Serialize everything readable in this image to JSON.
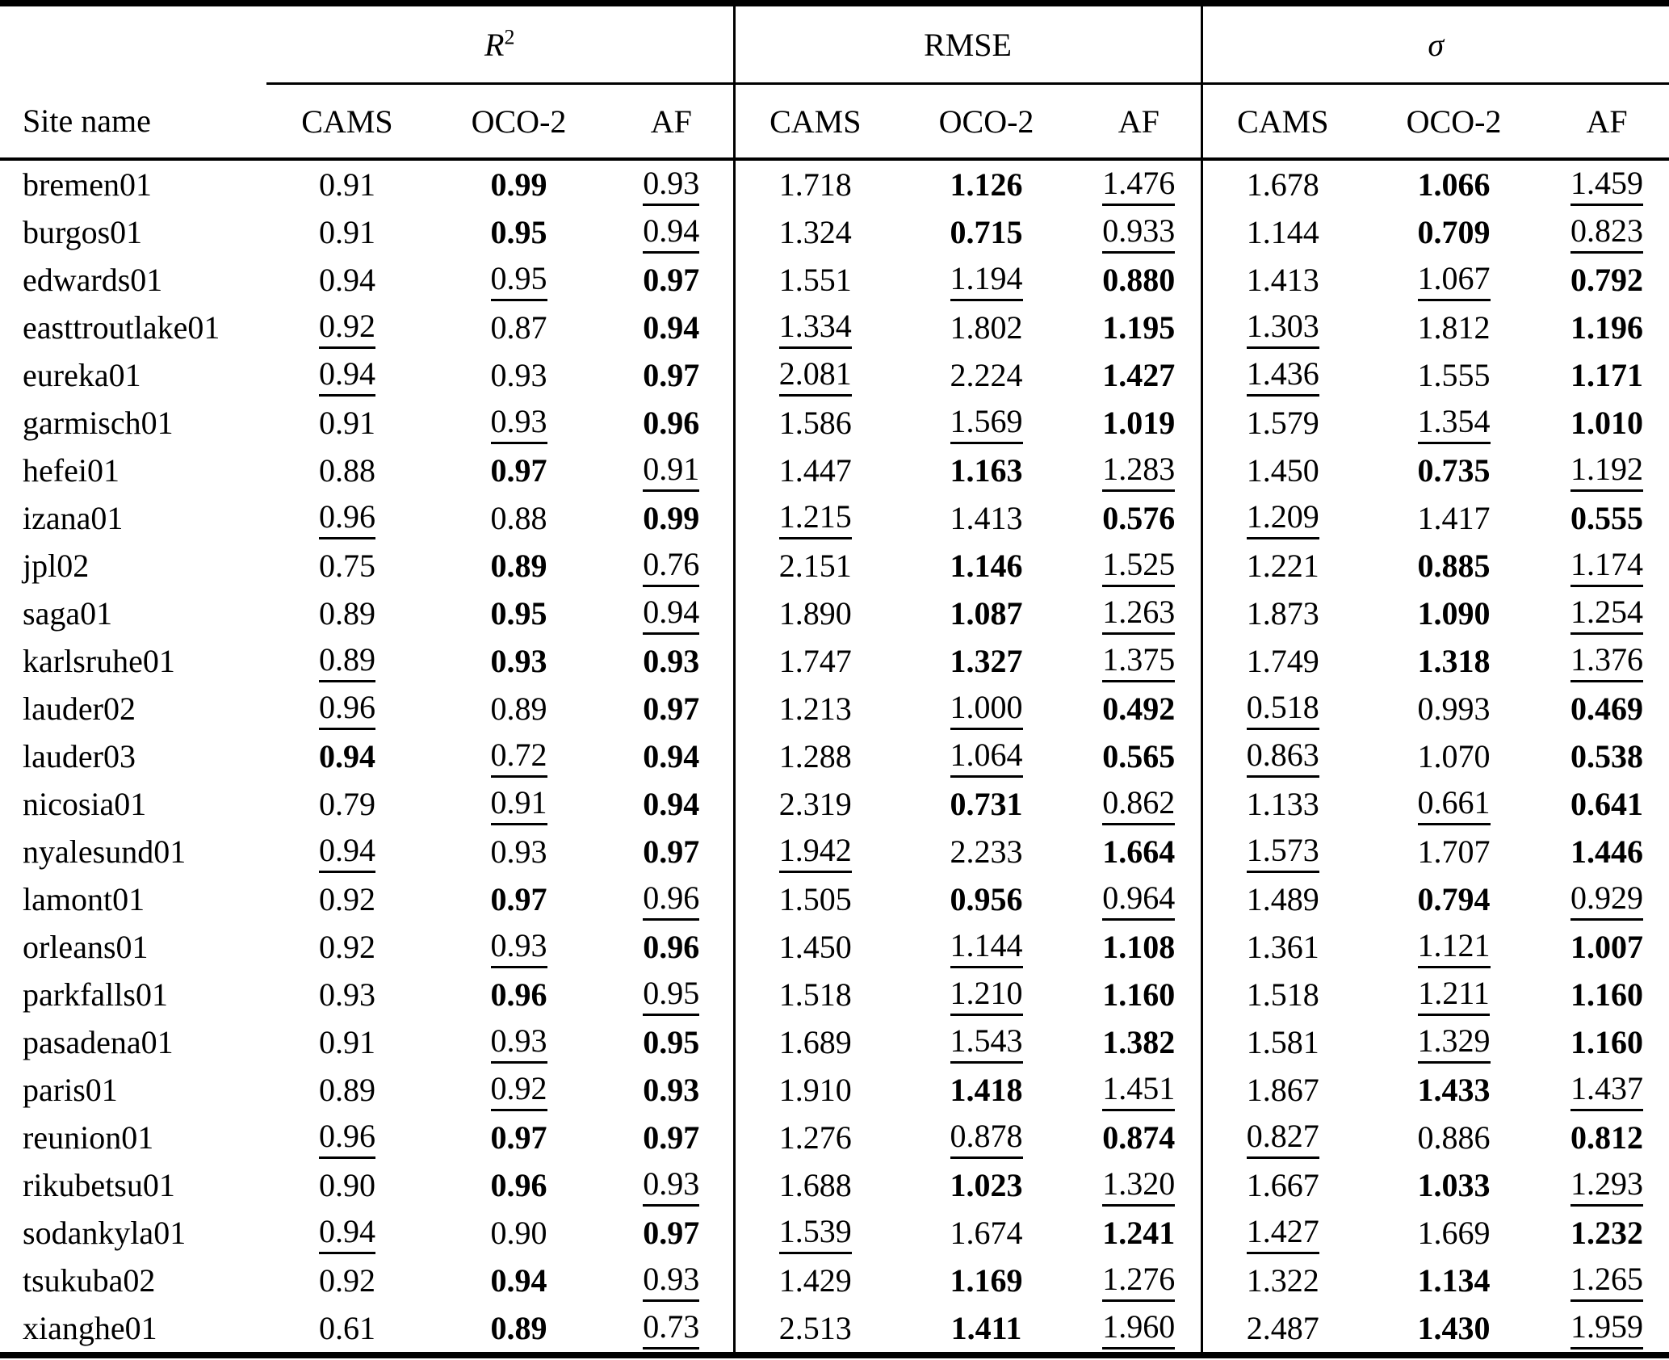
{
  "table": {
    "site_header": "Site name",
    "sub_columns": [
      "CAMS",
      "OCO-2",
      "AF"
    ],
    "groups": [
      {
        "label": "R2",
        "base": "R",
        "sup": "2",
        "italic": true
      },
      {
        "label": "RMSE",
        "base": "RMSE",
        "sup": "",
        "italic": false
      },
      {
        "label": "sigma",
        "base": "σ",
        "sup": "",
        "italic": true
      }
    ],
    "rows": [
      {
        "site": "bremen01",
        "values": [
          "0.91",
          "0.99",
          "0.93",
          "1.718",
          "1.126",
          "1.476",
          "1.678",
          "1.066",
          "1.459"
        ],
        "styles": [
          "",
          "b",
          "u",
          "",
          "b",
          "u",
          "",
          "b",
          "u"
        ]
      },
      {
        "site": "burgos01",
        "values": [
          "0.91",
          "0.95",
          "0.94",
          "1.324",
          "0.715",
          "0.933",
          "1.144",
          "0.709",
          "0.823"
        ],
        "styles": [
          "",
          "b",
          "u",
          "",
          "b",
          "u",
          "",
          "b",
          "u"
        ]
      },
      {
        "site": "edwards01",
        "values": [
          "0.94",
          "0.95",
          "0.97",
          "1.551",
          "1.194",
          "0.880",
          "1.413",
          "1.067",
          "0.792"
        ],
        "styles": [
          "",
          "u",
          "b",
          "",
          "u",
          "b",
          "",
          "u",
          "b"
        ]
      },
      {
        "site": "easttroutlake01",
        "values": [
          "0.92",
          "0.87",
          "0.94",
          "1.334",
          "1.802",
          "1.195",
          "1.303",
          "1.812",
          "1.196"
        ],
        "styles": [
          "u",
          "",
          "b",
          "u",
          "",
          "b",
          "u",
          "",
          "b"
        ]
      },
      {
        "site": "eureka01",
        "values": [
          "0.94",
          "0.93",
          "0.97",
          "2.081",
          "2.224",
          "1.427",
          "1.436",
          "1.555",
          "1.171"
        ],
        "styles": [
          "u",
          "",
          "b",
          "u",
          "",
          "b",
          "u",
          "",
          "b"
        ]
      },
      {
        "site": "garmisch01",
        "values": [
          "0.91",
          "0.93",
          "0.96",
          "1.586",
          "1.569",
          "1.019",
          "1.579",
          "1.354",
          "1.010"
        ],
        "styles": [
          "",
          "u",
          "b",
          "",
          "u",
          "b",
          "",
          "u",
          "b"
        ]
      },
      {
        "site": "hefei01",
        "values": [
          "0.88",
          "0.97",
          "0.91",
          "1.447",
          "1.163",
          "1.283",
          "1.450",
          "0.735",
          "1.192"
        ],
        "styles": [
          "",
          "b",
          "u",
          "",
          "b",
          "u",
          "",
          "b",
          "u"
        ]
      },
      {
        "site": "izana01",
        "values": [
          "0.96",
          "0.88",
          "0.99",
          "1.215",
          "1.413",
          "0.576",
          "1.209",
          "1.417",
          "0.555"
        ],
        "styles": [
          "u",
          "",
          "b",
          "u",
          "",
          "b",
          "u",
          "",
          "b"
        ]
      },
      {
        "site": "jpl02",
        "values": [
          "0.75",
          "0.89",
          "0.76",
          "2.151",
          "1.146",
          "1.525",
          "1.221",
          "0.885",
          "1.174"
        ],
        "styles": [
          "",
          "b",
          "u",
          "",
          "b",
          "u",
          "",
          "b",
          "u"
        ]
      },
      {
        "site": "saga01",
        "values": [
          "0.89",
          "0.95",
          "0.94",
          "1.890",
          "1.087",
          "1.263",
          "1.873",
          "1.090",
          "1.254"
        ],
        "styles": [
          "",
          "b",
          "u",
          "",
          "b",
          "u",
          "",
          "b",
          "u"
        ]
      },
      {
        "site": "karlsruhe01",
        "values": [
          "0.89",
          "0.93",
          "0.93",
          "1.747",
          "1.327",
          "1.375",
          "1.749",
          "1.318",
          "1.376"
        ],
        "styles": [
          "u",
          "b",
          "b",
          "",
          "b",
          "u",
          "",
          "b",
          "u"
        ]
      },
      {
        "site": "lauder02",
        "values": [
          "0.96",
          "0.89",
          "0.97",
          "1.213",
          "1.000",
          "0.492",
          "0.518",
          "0.993",
          "0.469"
        ],
        "styles": [
          "u",
          "",
          "b",
          "",
          "u",
          "b",
          "u",
          "",
          "b"
        ]
      },
      {
        "site": "lauder03",
        "values": [
          "0.94",
          "0.72",
          "0.94",
          "1.288",
          "1.064",
          "0.565",
          "0.863",
          "1.070",
          "0.538"
        ],
        "styles": [
          "b",
          "u",
          "b",
          "",
          "u",
          "b",
          "u",
          "",
          "b"
        ]
      },
      {
        "site": "nicosia01",
        "values": [
          "0.79",
          "0.91",
          "0.94",
          "2.319",
          "0.731",
          "0.862",
          "1.133",
          "0.661",
          "0.641"
        ],
        "styles": [
          "",
          "u",
          "b",
          "",
          "b",
          "u",
          "",
          "u",
          "b"
        ]
      },
      {
        "site": "nyalesund01",
        "values": [
          "0.94",
          "0.93",
          "0.97",
          "1.942",
          "2.233",
          "1.664",
          "1.573",
          "1.707",
          "1.446"
        ],
        "styles": [
          "u",
          "",
          "b",
          "u",
          "",
          "b",
          "u",
          "",
          "b"
        ]
      },
      {
        "site": "lamont01",
        "values": [
          "0.92",
          "0.97",
          "0.96",
          "1.505",
          "0.956",
          "0.964",
          "1.489",
          "0.794",
          "0.929"
        ],
        "styles": [
          "",
          "b",
          "u",
          "",
          "b",
          "u",
          "",
          "b",
          "u"
        ]
      },
      {
        "site": "orleans01",
        "values": [
          "0.92",
          "0.93",
          "0.96",
          "1.450",
          "1.144",
          "1.108",
          "1.361",
          "1.121",
          "1.007"
        ],
        "styles": [
          "",
          "u",
          "b",
          "",
          "u",
          "b",
          "",
          "u",
          "b"
        ]
      },
      {
        "site": "parkfalls01",
        "values": [
          "0.93",
          "0.96",
          "0.95",
          "1.518",
          "1.210",
          "1.160",
          "1.518",
          "1.211",
          "1.160"
        ],
        "styles": [
          "",
          "b",
          "u",
          "",
          "u",
          "b",
          "",
          "u",
          "b"
        ]
      },
      {
        "site": "pasadena01",
        "values": [
          "0.91",
          "0.93",
          "0.95",
          "1.689",
          "1.543",
          "1.382",
          "1.581",
          "1.329",
          "1.160"
        ],
        "styles": [
          "",
          "u",
          "b",
          "",
          "u",
          "b",
          "",
          "u",
          "b"
        ]
      },
      {
        "site": "paris01",
        "values": [
          "0.89",
          "0.92",
          "0.93",
          "1.910",
          "1.418",
          "1.451",
          "1.867",
          "1.433",
          "1.437"
        ],
        "styles": [
          "",
          "u",
          "b",
          "",
          "b",
          "u",
          "",
          "b",
          "u"
        ]
      },
      {
        "site": "reunion01",
        "values": [
          "0.96",
          "0.97",
          "0.97",
          "1.276",
          "0.878",
          "0.874",
          "0.827",
          "0.886",
          "0.812"
        ],
        "styles": [
          "u",
          "b",
          "b",
          "",
          "u",
          "b",
          "u",
          "",
          "b"
        ]
      },
      {
        "site": "rikubetsu01",
        "values": [
          "0.90",
          "0.96",
          "0.93",
          "1.688",
          "1.023",
          "1.320",
          "1.667",
          "1.033",
          "1.293"
        ],
        "styles": [
          "",
          "b",
          "u",
          "",
          "b",
          "u",
          "",
          "b",
          "u"
        ]
      },
      {
        "site": "sodankyla01",
        "values": [
          "0.94",
          "0.90",
          "0.97",
          "1.539",
          "1.674",
          "1.241",
          "1.427",
          "1.669",
          "1.232"
        ],
        "styles": [
          "u",
          "",
          "b",
          "u",
          "",
          "b",
          "u",
          "",
          "b"
        ]
      },
      {
        "site": "tsukuba02",
        "values": [
          "0.92",
          "0.94",
          "0.93",
          "1.429",
          "1.169",
          "1.276",
          "1.322",
          "1.134",
          "1.265"
        ],
        "styles": [
          "",
          "b",
          "u",
          "",
          "b",
          "u",
          "",
          "b",
          "u"
        ]
      },
      {
        "site": "xianghe01",
        "values": [
          "0.61",
          "0.89",
          "0.73",
          "2.513",
          "1.411",
          "1.960",
          "2.487",
          "1.430",
          "1.959"
        ],
        "styles": [
          "",
          "b",
          "u",
          "",
          "b",
          "u",
          "",
          "b",
          "u"
        ]
      }
    ]
  }
}
